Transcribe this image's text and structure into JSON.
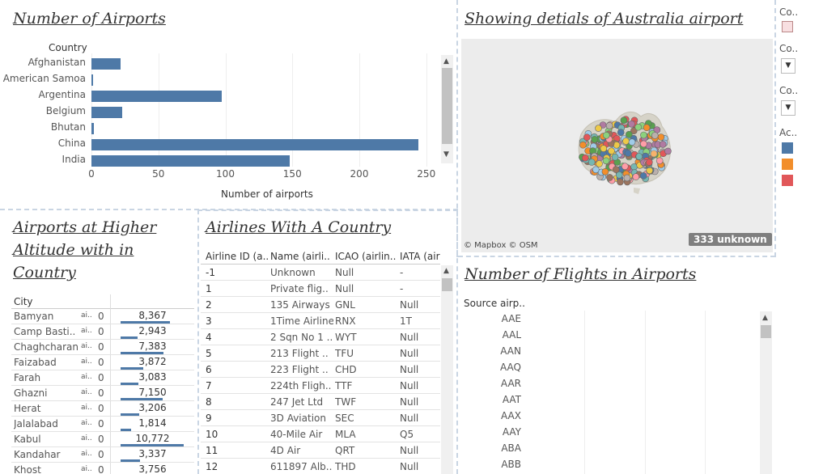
{
  "panels": {
    "airports_count": {
      "title": "Number of Airports",
      "row_header": "Country",
      "x_axis_label": "Number of airports",
      "ticks": [
        "0",
        "50",
        "100",
        "150",
        "200",
        "250"
      ]
    },
    "australia_map": {
      "title": "Showing detials of Australia airport",
      "attribution": "© Mapbox © OSM",
      "unknown_badge": "333 unknown"
    },
    "high_altitude": {
      "title_lines": [
        "Airports at Higher",
        "Altitude with in",
        "Country"
      ],
      "column_header": "City",
      "mid_label": "ai..",
      "rows": [
        {
          "city": "Bamyan",
          "zero": "0",
          "value": "8,367"
        },
        {
          "city": "Camp Basti..",
          "zero": "0",
          "value": "2,943"
        },
        {
          "city": "Chaghcharan",
          "zero": "0",
          "value": "7,383"
        },
        {
          "city": "Faizabad",
          "zero": "0",
          "value": "3,872"
        },
        {
          "city": "Farah",
          "zero": "0",
          "value": "3,083"
        },
        {
          "city": "Ghazni",
          "zero": "0",
          "value": "7,150"
        },
        {
          "city": "Herat",
          "zero": "0",
          "value": "3,206"
        },
        {
          "city": "Jalalabad",
          "zero": "0",
          "value": "1,814"
        },
        {
          "city": "Kabul",
          "zero": "0",
          "value": "10,772"
        },
        {
          "city": "Kandahar",
          "zero": "0",
          "value": "3,337"
        },
        {
          "city": "Khost",
          "zero": "0",
          "value": "3,756"
        }
      ]
    },
    "airlines": {
      "title": "Airlines With A Country",
      "headers": [
        "Airline ID (a..",
        "Name (airli..",
        "ICAO (airlin..",
        "IATA (air"
      ],
      "rows": [
        [
          "-1",
          "Unknown",
          "Null",
          "-"
        ],
        [
          "1",
          "Private flig..",
          "Null",
          "-"
        ],
        [
          "2",
          "135 Airways",
          "GNL",
          "Null"
        ],
        [
          "3",
          "1Time Airline",
          "RNX",
          "1T"
        ],
        [
          "4",
          "2 Sqn No 1 ..",
          "WYT",
          "Null"
        ],
        [
          "5",
          "213 Flight ..",
          "TFU",
          "Null"
        ],
        [
          "6",
          "223 Flight ..",
          "CHD",
          "Null"
        ],
        [
          "7",
          "224th Fligh..",
          "TTF",
          "Null"
        ],
        [
          "8",
          "247 Jet Ltd",
          "TWF",
          "Null"
        ],
        [
          "9",
          "3D Aviation",
          "SEC",
          "Null"
        ],
        [
          "10",
          "40-Mile Air",
          "MLA",
          "Q5"
        ],
        [
          "11",
          "4D Air",
          "QRT",
          "Null"
        ],
        [
          "12",
          "611897 Alb..",
          "THD",
          "Null"
        ]
      ]
    },
    "flights": {
      "title": "Number of  Flights in Airports",
      "row_header": "Source airp..",
      "codes": [
        "AAE",
        "AAL",
        "AAN",
        "AAQ",
        "AAR",
        "AAT",
        "AAX",
        "AAY",
        "ABA",
        "ABB"
      ]
    }
  },
  "legend": {
    "items": [
      {
        "label": "Co..",
        "kind": "swatch",
        "color": "#f8dfe1"
      },
      {
        "label": "Co..",
        "kind": "dropdown",
        "glyph": "▼"
      },
      {
        "label": "Co..",
        "kind": "dropdown",
        "glyph": "▼"
      },
      {
        "label": "Ac..",
        "kind": "palette"
      }
    ],
    "palette": [
      "#4e79a7",
      "#f28e2b",
      "#e15759"
    ]
  },
  "colors": {
    "bar": "#4e79a7",
    "accent_orange": "#f28e2b",
    "accent_red": "#e15759",
    "map_background": "#ececec"
  },
  "chart_data": {
    "type": "bar",
    "orientation": "horizontal",
    "categories": [
      "Afghanistan",
      "American Samoa",
      "Argentina",
      "Belgium",
      "Bhutan",
      "China",
      "India"
    ],
    "values": [
      22,
      1,
      97,
      23,
      2,
      244,
      148
    ],
    "xlabel": "Number of airports",
    "ylabel": "Country",
    "xlim": [
      0,
      260
    ]
  }
}
